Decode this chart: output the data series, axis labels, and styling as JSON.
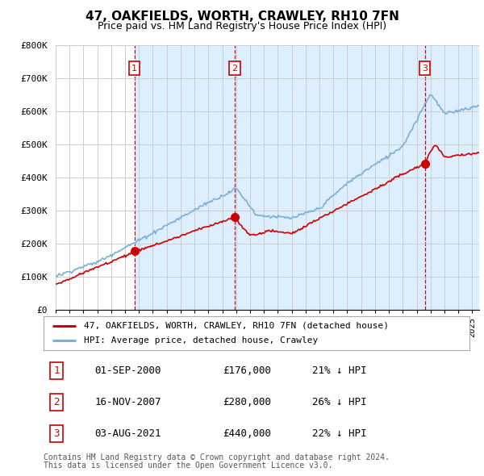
{
  "title": "47, OAKFIELDS, WORTH, CRAWLEY, RH10 7FN",
  "subtitle": "Price paid vs. HM Land Registry's House Price Index (HPI)",
  "legend_line1": "47, OAKFIELDS, WORTH, CRAWLEY, RH10 7FN (detached house)",
  "legend_line2": "HPI: Average price, detached house, Crawley",
  "transactions": [
    {
      "num": 1,
      "date": "01-SEP-2000",
      "price": 176000,
      "hpi_diff": "21% ↓ HPI",
      "year": 2000.67
    },
    {
      "num": 2,
      "date": "16-NOV-2007",
      "price": 280000,
      "hpi_diff": "26% ↓ HPI",
      "year": 2007.88
    },
    {
      "num": 3,
      "date": "03-AUG-2021",
      "price": 440000,
      "hpi_diff": "22% ↓ HPI",
      "year": 2021.58
    }
  ],
  "footnote1": "Contains HM Land Registry data © Crown copyright and database right 2024.",
  "footnote2": "This data is licensed under the Open Government Licence v3.0.",
  "hpi_color": "#7ab0d8",
  "price_color": "#cc0000",
  "marker_color": "#cc0000",
  "shade_color": "#ddeeff",
  "background_color": "#ffffff",
  "grid_color": "#cccccc",
  "ylim": [
    0,
    800000
  ],
  "yticks": [
    0,
    100000,
    200000,
    300000,
    400000,
    500000,
    600000,
    700000,
    800000
  ],
  "xlim_start": 1995.0,
  "xlim_end": 2025.5
}
